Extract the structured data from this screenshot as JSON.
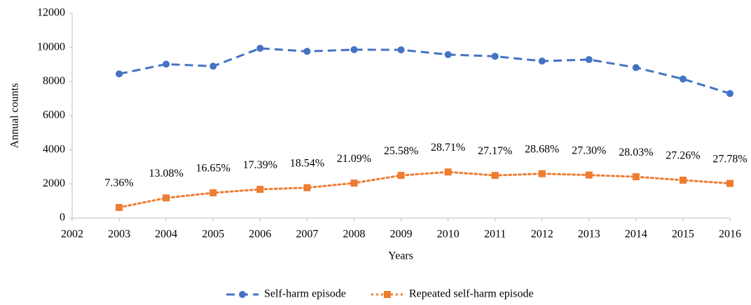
{
  "chart_data": {
    "type": "line",
    "x_label": "Years",
    "y_label": "Annual counts",
    "x": [
      2003,
      2004,
      2005,
      2006,
      2007,
      2008,
      2009,
      2010,
      2011,
      2012,
      2013,
      2014,
      2015,
      2016
    ],
    "xlim": [
      2002,
      2016
    ],
    "xticks": [
      2002,
      2003,
      2004,
      2005,
      2006,
      2007,
      2008,
      2009,
      2010,
      2011,
      2012,
      2013,
      2014,
      2015,
      2016
    ],
    "ylim": [
      0,
      12000
    ],
    "yticks": [
      0,
      2000,
      4000,
      6000,
      8000,
      10000,
      12000
    ],
    "grid": false,
    "legend": "bottom",
    "series": [
      {
        "name": "Self-harm episode",
        "color": "#4472c4",
        "line": "dashed",
        "marker": "circle",
        "values": [
          8450,
          9020,
          8900,
          9950,
          9770,
          9870,
          9860,
          9580,
          9480,
          9200,
          9290,
          8820,
          8150,
          7300
        ]
      },
      {
        "name": "Repeated self-harm episode",
        "color": "#ed7d31",
        "line": "dotted",
        "marker": "square",
        "values": [
          620,
          1180,
          1480,
          1680,
          1780,
          2050,
          2500,
          2700,
          2500,
          2600,
          2520,
          2420,
          2220,
          2030
        ],
        "labels": [
          "7.36%",
          "13.08%",
          "16.65%",
          "17.39%",
          "18.54%",
          "21.09%",
          "25.58%",
          "28.71%",
          "27.17%",
          "28.68%",
          "27.30%",
          "28.03%",
          "27.26%",
          "27.78%"
        ]
      }
    ]
  }
}
